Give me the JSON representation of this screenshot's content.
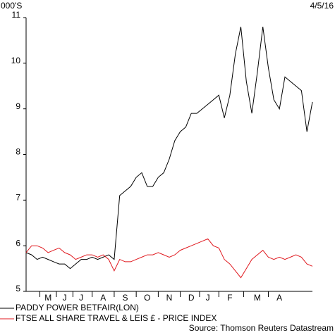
{
  "chart_data": {
    "type": "line",
    "y_label": "000'S",
    "date": "4/5/16",
    "source": "Source: Thomson Reuters Datastream",
    "categories": [
      null,
      null,
      null,
      null,
      "M",
      null,
      null,
      "J",
      null,
      null,
      "J",
      null,
      null,
      null,
      "A",
      null,
      null,
      null,
      "S",
      null,
      null,
      null,
      "O",
      null,
      null,
      null,
      "N",
      null,
      null,
      null,
      "D",
      null,
      null,
      "J",
      null,
      null,
      null,
      "F",
      null,
      null,
      null,
      null,
      "M",
      null,
      null,
      null,
      "A",
      null,
      null,
      null,
      null,
      null,
      null
    ],
    "series": [
      {
        "name": "PADDY POWER BETFAIR(LON)",
        "color": "#000000",
        "values": [
          5.85,
          5.8,
          5.7,
          5.75,
          5.7,
          5.65,
          5.6,
          5.6,
          5.5,
          5.6,
          5.7,
          5.7,
          5.75,
          5.7,
          5.75,
          5.8,
          5.7,
          7.1,
          7.2,
          7.3,
          7.5,
          7.6,
          7.3,
          7.3,
          7.5,
          7.6,
          7.9,
          8.3,
          8.5,
          8.6,
          8.9,
          8.9,
          9.0,
          9.1,
          9.2,
          9.3,
          8.8,
          9.3,
          10.2,
          10.8,
          9.6,
          8.9,
          9.8,
          10.8,
          9.9,
          9.2,
          9.0,
          9.7,
          9.6,
          9.5,
          9.4,
          8.5,
          9.15
        ]
      },
      {
        "name": "FTSE ALL SHARE TRAVEL & LEIS £ - PRICE INDEX",
        "color": "#e0191f",
        "values": [
          5.85,
          6.0,
          6.0,
          5.95,
          5.85,
          5.9,
          5.95,
          5.85,
          5.8,
          5.7,
          5.75,
          5.8,
          5.8,
          5.75,
          5.8,
          5.7,
          5.45,
          5.7,
          5.65,
          5.65,
          5.7,
          5.75,
          5.8,
          5.8,
          5.85,
          5.8,
          5.75,
          5.8,
          5.9,
          5.95,
          6.0,
          6.05,
          6.1,
          6.15,
          6.0,
          5.95,
          5.7,
          5.6,
          5.45,
          5.3,
          5.5,
          5.7,
          5.8,
          5.9,
          5.75,
          5.7,
          5.75,
          5.7,
          5.75,
          5.8,
          5.75,
          5.6,
          5.55
        ]
      }
    ],
    "ylim": [
      5,
      11
    ],
    "yticks": [
      5,
      6,
      7,
      8,
      9,
      10,
      11
    ]
  }
}
